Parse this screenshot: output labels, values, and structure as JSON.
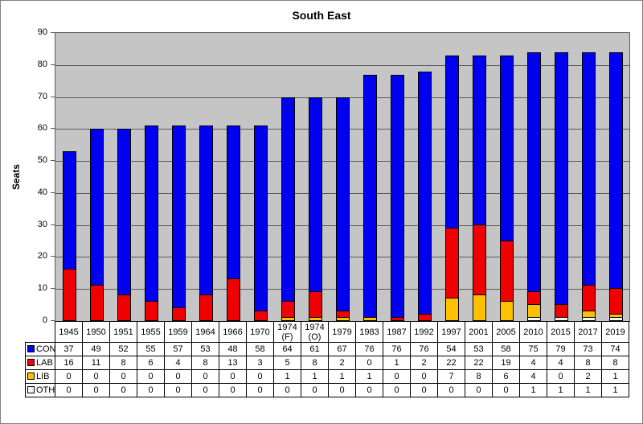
{
  "title": "South East",
  "y_axis": {
    "label": "Seats",
    "ticks": [
      90,
      80,
      70,
      60,
      50,
      40,
      30,
      20,
      10,
      0
    ],
    "max": 90
  },
  "colors": {
    "plot_background": "#c5c5c5",
    "gridline": "#5a5a5a",
    "con": "#0000f0",
    "lab": "#f00000",
    "lib": "#ffc000",
    "oth": "#f0faf0"
  },
  "chart_data": {
    "type": "bar",
    "stacked": true,
    "title": "South East",
    "xlabel": "",
    "ylabel": "Seats",
    "ylim": [
      0,
      90
    ],
    "grid": true,
    "legend_position": "table-left",
    "categories": [
      "1945",
      "1950",
      "1951",
      "1955",
      "1959",
      "1964",
      "1966",
      "1970",
      "1974 (F)",
      "1974 (O)",
      "1979",
      "1983",
      "1987",
      "1992",
      "1997",
      "2001",
      "2005",
      "2010",
      "2015",
      "2017",
      "2019"
    ],
    "series": [
      {
        "name": "CON",
        "color": "#0000f0",
        "values": [
          37,
          49,
          52,
          55,
          57,
          53,
          48,
          58,
          64,
          61,
          67,
          76,
          76,
          76,
          54,
          53,
          58,
          75,
          79,
          73,
          74
        ]
      },
      {
        "name": "LAB",
        "color": "#f00000",
        "values": [
          16,
          11,
          8,
          6,
          4,
          8,
          13,
          3,
          5,
          8,
          2,
          0,
          1,
          2,
          22,
          22,
          19,
          4,
          4,
          8,
          8
        ]
      },
      {
        "name": "LIB",
        "color": "#ffc000",
        "values": [
          0,
          0,
          0,
          0,
          0,
          0,
          0,
          0,
          1,
          1,
          1,
          1,
          0,
          0,
          7,
          8,
          6,
          4,
          0,
          2,
          1
        ]
      },
      {
        "name": "OTH",
        "color": "#f0faf0",
        "values": [
          0,
          0,
          0,
          0,
          0,
          0,
          0,
          0,
          0,
          0,
          0,
          0,
          0,
          0,
          0,
          0,
          0,
          1,
          1,
          1,
          1
        ]
      }
    ]
  }
}
